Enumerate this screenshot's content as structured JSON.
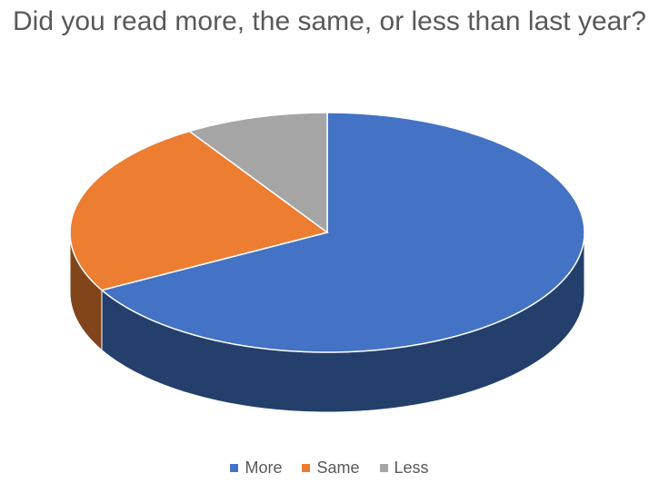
{
  "chart_data": {
    "type": "pie",
    "title": "Did you read more, the same, or less than last year?",
    "categories": [
      "More",
      "Same",
      "Less"
    ],
    "values": [
      67,
      24,
      9
    ],
    "colors": [
      "#4472c4",
      "#ed7d31",
      "#a5a5a5"
    ],
    "legend": "bottom"
  }
}
